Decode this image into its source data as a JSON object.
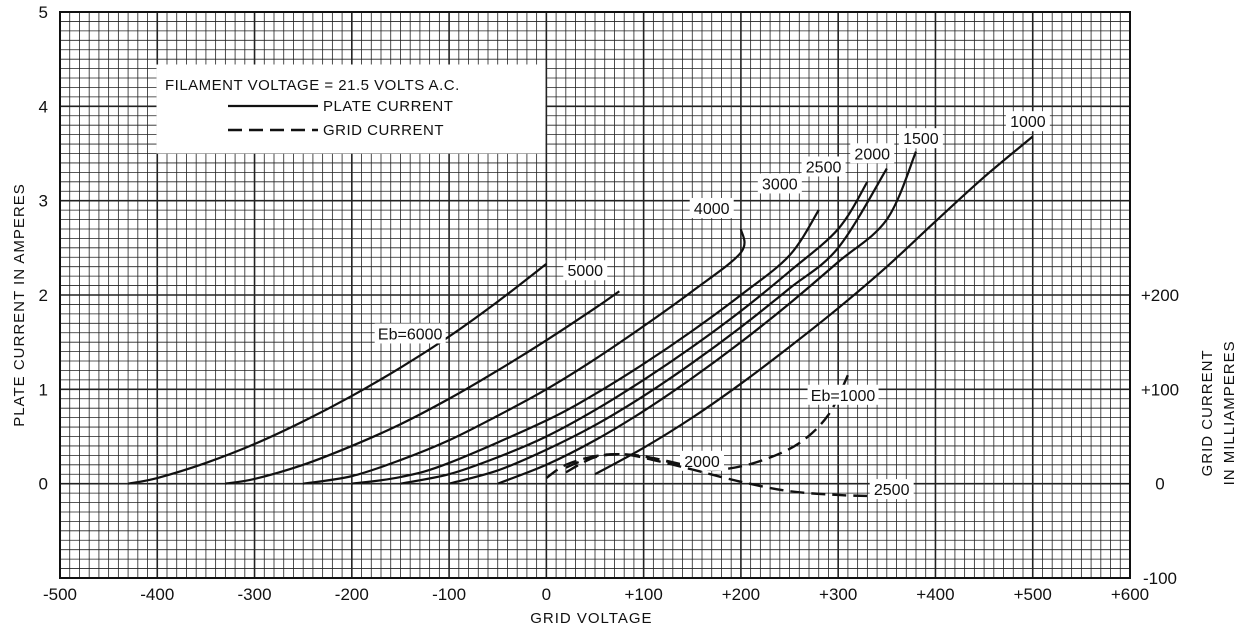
{
  "chart_data": {
    "type": "line",
    "xlabel": "GRID VOLTAGE",
    "ylabel": "PLATE CURRENT IN AMPERES",
    "y2label_line1": "GRID CURRENT",
    "y2label_line2": "IN MILLIAMPERES",
    "xlim": [
      -500,
      600
    ],
    "ylim": [
      -1,
      5
    ],
    "y2lim": [
      -100,
      300
    ],
    "x_ticks": [
      "-500",
      "-400",
      "-300",
      "-200",
      "-100",
      "0",
      "+100",
      "+200",
      "+300",
      "+400",
      "+500",
      "+600"
    ],
    "x_tick_values": [
      -500,
      -400,
      -300,
      -200,
      -100,
      0,
      100,
      200,
      300,
      400,
      500,
      600
    ],
    "y_ticks": [
      "0",
      "1",
      "2",
      "3",
      "4",
      "5"
    ],
    "y_tick_values": [
      0,
      1,
      2,
      3,
      4,
      5
    ],
    "y2_ticks": [
      "-100",
      "0",
      "+100",
      "+200"
    ],
    "y2_tick_values": [
      -100,
      0,
      100,
      200
    ],
    "grid": true,
    "legend": {
      "position": "top-left",
      "title": "FILAMENT VOLTAGE = 21.5 VOLTS A.C.",
      "solid_label": "PLATE CURRENT",
      "dashed_label": "GRID CURRENT"
    },
    "plate_series": [
      {
        "label": "Eb=6000",
        "label_x": -140,
        "label_y": 1.55,
        "points": [
          [
            -430,
            0
          ],
          [
            -400,
            0.06
          ],
          [
            -350,
            0.22
          ],
          [
            -300,
            0.42
          ],
          [
            -250,
            0.66
          ],
          [
            -200,
            0.93
          ],
          [
            -150,
            1.23
          ],
          [
            -100,
            1.56
          ],
          [
            -50,
            1.93
          ],
          [
            0,
            2.33
          ],
          [
            -20,
            2.15
          ]
        ]
      },
      {
        "label": "5000",
        "label_x": 40,
        "label_y": 2.22,
        "points": [
          [
            -330,
            0
          ],
          [
            -300,
            0.05
          ],
          [
            -250,
            0.2
          ],
          [
            -200,
            0.4
          ],
          [
            -150,
            0.63
          ],
          [
            -100,
            0.9
          ],
          [
            -50,
            1.2
          ],
          [
            0,
            1.52
          ],
          [
            50,
            1.86
          ],
          [
            75,
            2.04
          ]
        ]
      },
      {
        "label": "4000",
        "label_x": 170,
        "label_y": 2.88,
        "points": [
          [
            -250,
            0
          ],
          [
            -200,
            0.08
          ],
          [
            -150,
            0.25
          ],
          [
            -100,
            0.46
          ],
          [
            -50,
            0.72
          ],
          [
            0,
            1.0
          ],
          [
            50,
            1.32
          ],
          [
            100,
            1.67
          ],
          [
            150,
            2.04
          ],
          [
            200,
            2.45
          ],
          [
            200,
            2.7
          ]
        ]
      },
      {
        "label": "3000",
        "label_x": 240,
        "label_y": 3.14,
        "points": [
          [
            -200,
            0
          ],
          [
            -150,
            0.07
          ],
          [
            -100,
            0.22
          ],
          [
            0,
            0.67
          ],
          [
            50,
            0.95
          ],
          [
            100,
            1.27
          ],
          [
            150,
            1.62
          ],
          [
            200,
            2.0
          ],
          [
            250,
            2.42
          ],
          [
            280,
            2.9
          ]
        ]
      },
      {
        "label": "2500",
        "label_x": 285,
        "label_y": 3.32,
        "points": [
          [
            -150,
            0
          ],
          [
            -100,
            0.1
          ],
          [
            -50,
            0.28
          ],
          [
            0,
            0.5
          ],
          [
            50,
            0.78
          ],
          [
            100,
            1.1
          ],
          [
            150,
            1.45
          ],
          [
            200,
            1.83
          ],
          [
            250,
            2.25
          ],
          [
            300,
            2.7
          ],
          [
            330,
            3.2
          ]
        ]
      },
      {
        "label": "2000",
        "label_x": 335,
        "label_y": 3.46,
        "points": [
          [
            -100,
            0
          ],
          [
            -50,
            0.14
          ],
          [
            0,
            0.36
          ],
          [
            50,
            0.62
          ],
          [
            100,
            0.93
          ],
          [
            150,
            1.28
          ],
          [
            200,
            1.66
          ],
          [
            250,
            2.07
          ],
          [
            300,
            2.5
          ],
          [
            350,
            3.34
          ]
        ]
      },
      {
        "label": "1500",
        "label_x": 385,
        "label_y": 3.62,
        "points": [
          [
            -50,
            0
          ],
          [
            0,
            0.2
          ],
          [
            50,
            0.46
          ],
          [
            100,
            0.77
          ],
          [
            150,
            1.12
          ],
          [
            200,
            1.5
          ],
          [
            250,
            1.91
          ],
          [
            300,
            2.35
          ],
          [
            350,
            2.8
          ],
          [
            380,
            3.52
          ]
        ]
      },
      {
        "label": "1000",
        "label_x": 495,
        "label_y": 3.8,
        "points": [
          [
            50,
            0.1
          ],
          [
            100,
            0.38
          ],
          [
            150,
            0.7
          ],
          [
            200,
            1.06
          ],
          [
            250,
            1.45
          ],
          [
            300,
            1.86
          ],
          [
            350,
            2.3
          ],
          [
            400,
            2.78
          ],
          [
            450,
            3.25
          ],
          [
            500,
            3.68
          ]
        ]
      }
    ],
    "grid_series": [
      {
        "label": "Eb=1000",
        "label_x": 305,
        "label_y": 90,
        "points": [
          [
            0,
            6
          ],
          [
            20,
            20
          ],
          [
            50,
            29
          ],
          [
            80,
            31
          ],
          [
            110,
            27
          ],
          [
            150,
            17
          ],
          [
            180,
            15
          ],
          [
            220,
            24
          ],
          [
            260,
            43
          ],
          [
            290,
            73
          ],
          [
            310,
            115
          ]
        ]
      },
      {
        "label": "2000",
        "label_x": 160,
        "label_y": 20,
        "points": [
          [
            20,
            12
          ],
          [
            50,
            28
          ],
          [
            80,
            31
          ],
          [
            110,
            27
          ],
          [
            150,
            18
          ]
        ]
      },
      {
        "label": "2500",
        "label_x": 355,
        "label_y": -10,
        "points": [
          [
            20,
            17
          ],
          [
            50,
            29
          ],
          [
            80,
            31
          ],
          [
            110,
            25
          ],
          [
            150,
            15
          ],
          [
            200,
            2
          ],
          [
            250,
            -8
          ],
          [
            300,
            -12
          ],
          [
            330,
            -13
          ]
        ]
      }
    ]
  }
}
